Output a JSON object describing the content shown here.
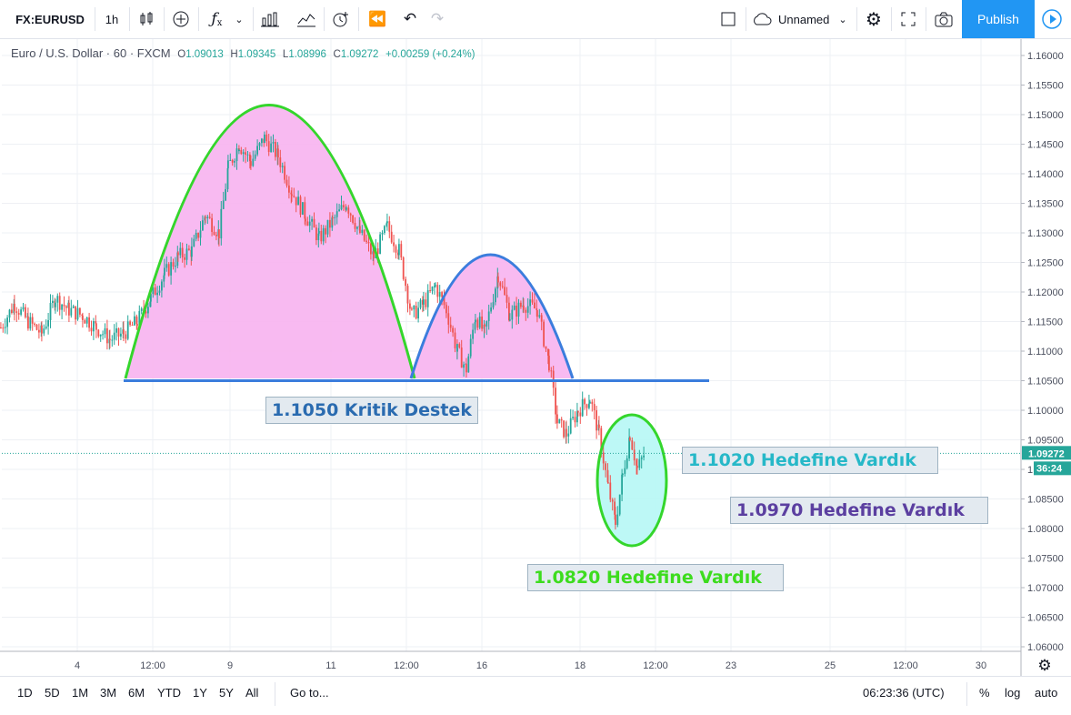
{
  "toolbar": {
    "symbol": "FX:EURUSD",
    "interval": "1h",
    "layout_name": "Unnamed",
    "publish_label": "Publish"
  },
  "legend": {
    "name": "Euro / U.S. Dollar",
    "interval": "60",
    "source": "FXCM",
    "o_label": "O",
    "o": "1.09013",
    "h_label": "H",
    "h": "1.09345",
    "l_label": "L",
    "l": "1.08996",
    "c_label": "C",
    "c": "1.09272",
    "change": "+0.00259 (+0.24%)"
  },
  "price_axis": {
    "labels": [
      "1.16000",
      "1.15500",
      "1.15000",
      "1.14500",
      "1.14000",
      "1.13500",
      "1.13000",
      "1.12500",
      "1.12000",
      "1.11500",
      "1.11000",
      "1.10500",
      "1.10000",
      "1.09500",
      "1.09000",
      "1.08500",
      "1.08000",
      "1.07500",
      "1.07000",
      "1.06500",
      "1.06000"
    ],
    "last_price": "1.09272",
    "countdown": "36:24"
  },
  "time_axis": {
    "labels": [
      "4",
      "12:00",
      "9",
      "11",
      "12:00",
      "16",
      "18",
      "12:00",
      "23",
      "25",
      "12:00",
      "30"
    ]
  },
  "annotations": {
    "support": "1.1050 Kritik Destek",
    "target1": "1.1020 Hedefine Vardık",
    "target2": "1.0970 Hedefine Vardık",
    "target3": "1.0820 Hedefine Vardık"
  },
  "colors": {
    "support_text": "#2a6bb0",
    "target1_text": "#26b8c8",
    "target2_text": "#5b3fa0",
    "target3_text": "#3ddc1e",
    "up_candle": "#26a69a",
    "down_candle": "#ef5350",
    "arc_green": "#34d62c",
    "arc_blue": "#3b7ddd",
    "pink_fill": "#f7b3f0",
    "cyan_fill": "#b6f7f5"
  },
  "chart_data": {
    "type": "candlestick",
    "symbol": "EURUSD",
    "timeframe": "60",
    "ylim": [
      1.06,
      1.162
    ],
    "key_levels": {
      "support": 1.105
    },
    "targets": [
      1.102,
      1.097,
      1.082
    ],
    "last_close": 1.09272,
    "price_path": [
      [
        0,
        1.114
      ],
      [
        15,
        1.118
      ],
      [
        30,
        1.115
      ],
      [
        45,
        1.113
      ],
      [
        60,
        1.119
      ],
      [
        75,
        1.117
      ],
      [
        90,
        1.116
      ],
      [
        105,
        1.114
      ],
      [
        120,
        1.112
      ],
      [
        135,
        1.113
      ],
      [
        150,
        1.115
      ],
      [
        165,
        1.119
      ],
      [
        180,
        1.123
      ],
      [
        195,
        1.126
      ],
      [
        210,
        1.127
      ],
      [
        225,
        1.133
      ],
      [
        240,
        1.13
      ],
      [
        250,
        1.141
      ],
      [
        262,
        1.145
      ],
      [
        275,
        1.142
      ],
      [
        290,
        1.146
      ],
      [
        305,
        1.143
      ],
      [
        320,
        1.137
      ],
      [
        335,
        1.133
      ],
      [
        350,
        1.129
      ],
      [
        365,
        1.132
      ],
      [
        380,
        1.135
      ],
      [
        395,
        1.13
      ],
      [
        410,
        1.126
      ],
      [
        425,
        1.131
      ],
      [
        438,
        1.127
      ],
      [
        452,
        1.116
      ],
      [
        465,
        1.118
      ],
      [
        478,
        1.121
      ],
      [
        490,
        1.117
      ],
      [
        502,
        1.11
      ],
      [
        512,
        1.107
      ],
      [
        522,
        1.116
      ],
      [
        532,
        1.113
      ],
      [
        547,
        1.123
      ],
      [
        560,
        1.116
      ],
      [
        575,
        1.118
      ],
      [
        590,
        1.117
      ],
      [
        603,
        1.108
      ],
      [
        612,
        1.098
      ],
      [
        622,
        1.096
      ],
      [
        635,
        1.1
      ],
      [
        648,
        1.102
      ],
      [
        658,
        1.096
      ],
      [
        668,
        1.087
      ],
      [
        676,
        1.081
      ],
      [
        684,
        1.089
      ],
      [
        692,
        1.096
      ],
      [
        700,
        1.09
      ],
      [
        708,
        1.0927
      ]
    ]
  }
}
